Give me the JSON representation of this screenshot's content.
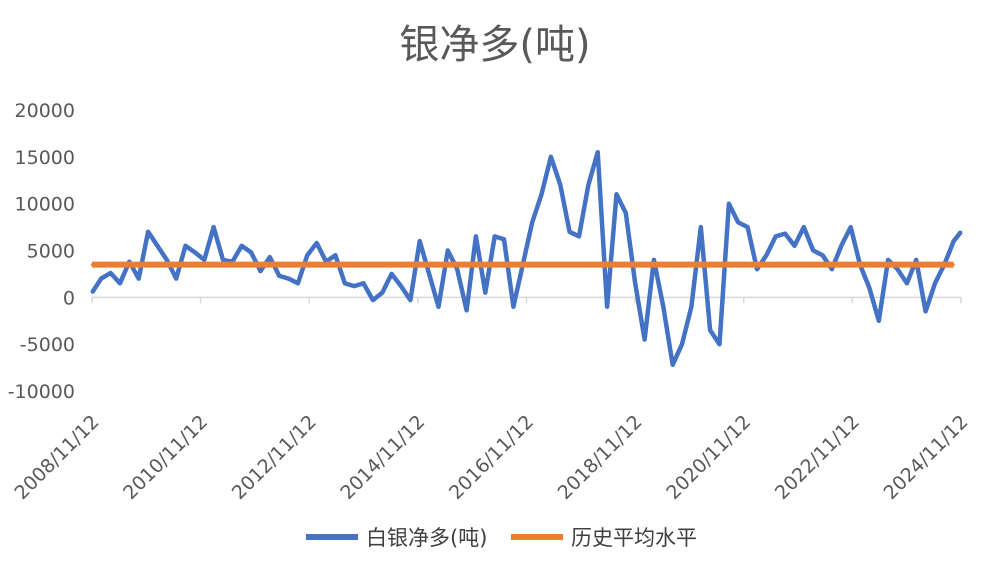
{
  "chart_data": {
    "type": "line",
    "title": "银净多(吨)",
    "xlabel": "",
    "ylabel": "",
    "ylim": [
      -10000,
      20000
    ],
    "yticks": [
      -10000,
      -5000,
      0,
      5000,
      10000,
      15000,
      20000
    ],
    "x_tick_labels": [
      "2008/11/12",
      "2010/11/12",
      "2012/11/12",
      "2014/11/12",
      "2016/11/12",
      "2018/11/12",
      "2020/11/12",
      "2022/11/12",
      "2024/11/12"
    ],
    "x_range": [
      "2008/11/12",
      "2024/11/12"
    ],
    "grid": false,
    "legend_position": "bottom",
    "colors": {
      "net_long": "#4472C4",
      "average": "#ED7D31",
      "axis": "#D9D9D9",
      "text": "#595959"
    },
    "series": [
      {
        "name": "白银净多(吨)",
        "x": [
          "2008/11/12",
          "2009/01/13",
          "2009/03/17",
          "2009/05/19",
          "2009/07/21",
          "2009/09/22",
          "2009/11/24",
          "2010/01/26",
          "2010/03/30",
          "2010/06/01",
          "2010/08/03",
          "2010/10/05",
          "2010/12/07",
          "2011/02/08",
          "2011/04/12",
          "2011/06/14",
          "2011/08/16",
          "2011/10/18",
          "2011/12/20",
          "2012/02/21",
          "2012/04/24",
          "2012/06/26",
          "2012/08/28",
          "2012/10/30",
          "2013/01/01",
          "2013/03/05",
          "2013/05/07",
          "2013/07/09",
          "2013/09/10",
          "2013/11/12",
          "2014/01/14",
          "2014/03/18",
          "2014/05/20",
          "2014/07/22",
          "2014/09/23",
          "2014/11/25",
          "2015/01/27",
          "2015/03/31",
          "2015/06/02",
          "2015/08/04",
          "2015/10/06",
          "2015/12/08",
          "2016/02/09",
          "2016/04/12",
          "2016/06/14",
          "2016/08/16",
          "2016/10/18",
          "2016/12/20",
          "2017/02/21",
          "2017/04/25",
          "2017/06/27",
          "2017/08/29",
          "2017/10/31",
          "2018/01/02",
          "2018/03/06",
          "2018/05/08",
          "2018/07/10",
          "2018/09/11",
          "2018/11/13",
          "2019/01/15",
          "2019/03/19",
          "2019/05/21",
          "2019/07/23",
          "2019/09/24",
          "2019/11/26",
          "2020/01/28",
          "2020/03/31",
          "2020/06/02",
          "2020/08/04",
          "2020/10/06",
          "2020/12/08",
          "2021/02/09",
          "2021/04/13",
          "2021/06/15",
          "2021/08/17",
          "2021/10/19",
          "2021/12/21",
          "2022/02/22",
          "2022/04/26",
          "2022/06/28",
          "2022/08/30",
          "2022/11/01",
          "2023/01/03",
          "2023/03/07",
          "2023/05/09",
          "2023/07/11",
          "2023/09/12",
          "2023/11/14",
          "2024/01/16",
          "2024/03/19",
          "2024/05/21",
          "2024/07/23",
          "2024/09/24",
          "2024/11/12"
        ],
        "values": [
          500,
          2000,
          2600,
          1500,
          3800,
          2000,
          7000,
          5500,
          4000,
          2000,
          5500,
          4800,
          4000,
          7500,
          4000,
          3800,
          5500,
          4800,
          2800,
          4300,
          2300,
          2000,
          1500,
          4500,
          5800,
          3800,
          4500,
          1500,
          1200,
          1500,
          -300,
          500,
          2500,
          1200,
          -300,
          6000,
          2500,
          -1000,
          5000,
          3000,
          -1400,
          6500,
          500,
          6500,
          6200,
          -1000,
          3500,
          8000,
          11000,
          15000,
          12000,
          7000,
          6500,
          12000,
          15500,
          -1000,
          11000,
          9000,
          1500,
          -4500,
          4000,
          -1000,
          -7200,
          -5000,
          -1000,
          7500,
          -3500,
          -5000,
          10000,
          8000,
          7500,
          3000,
          4500,
          6500,
          6800,
          5500,
          7500,
          5000,
          4500,
          3000,
          5500,
          7500,
          3500,
          1000,
          -2500,
          4000,
          3000,
          1500,
          4000,
          -1500,
          1500,
          3500,
          6000,
          7000
        ]
      },
      {
        "name": "历史平均水平",
        "x": [
          "2008/11/12",
          "2024/09/24"
        ],
        "values": [
          3500,
          3500
        ]
      }
    ]
  }
}
